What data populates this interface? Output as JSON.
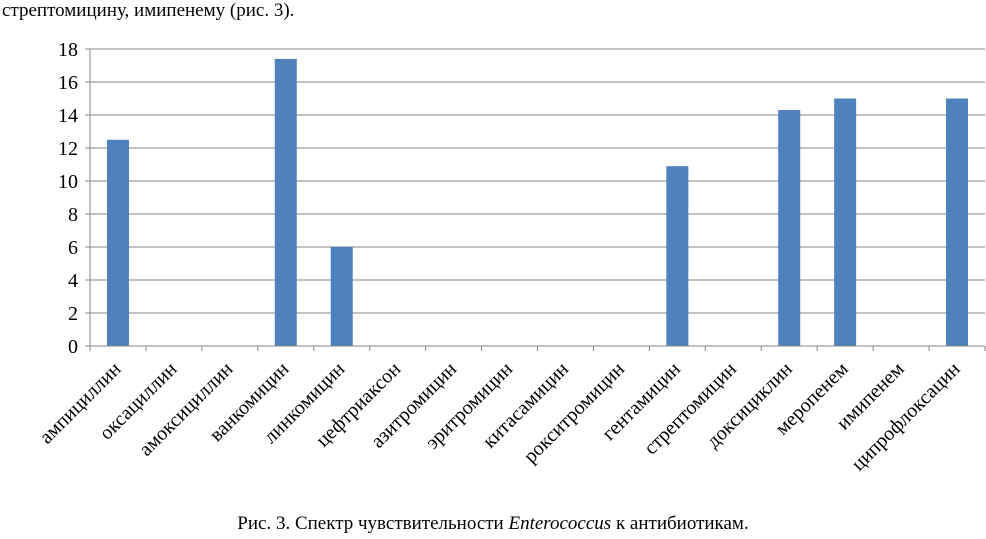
{
  "intro_text": "стрептомицину, имипенему (рис. 3).",
  "caption": {
    "prefix": "Рис. 3. Спектр чувствительности ",
    "italic": "Enterococcus",
    "suffix": " к антибиотикам."
  },
  "chart_data": {
    "type": "bar",
    "categories": [
      "ампициллин",
      "оксациллин",
      "амоксициллин",
      "ванкомицин",
      "линкомицин",
      "цефтриаксон",
      "азитромицин",
      "эритромицин",
      "китасамицин",
      "рокситромицин",
      "гентамицин",
      "стрептомицин",
      "доксициклин",
      "меропенем",
      "имипенем",
      "ципрофлоксацин"
    ],
    "values": [
      12.5,
      0,
      0,
      17.4,
      6,
      0,
      0,
      0,
      0,
      0,
      10.9,
      0,
      14.3,
      15,
      0,
      15
    ],
    "ylim": [
      0,
      18
    ],
    "yticks": [
      0,
      2,
      4,
      6,
      8,
      10,
      12,
      14,
      16,
      18
    ],
    "grid": true,
    "bar_color": "#4f81bd",
    "title": "",
    "xlabel": "",
    "ylabel": ""
  }
}
